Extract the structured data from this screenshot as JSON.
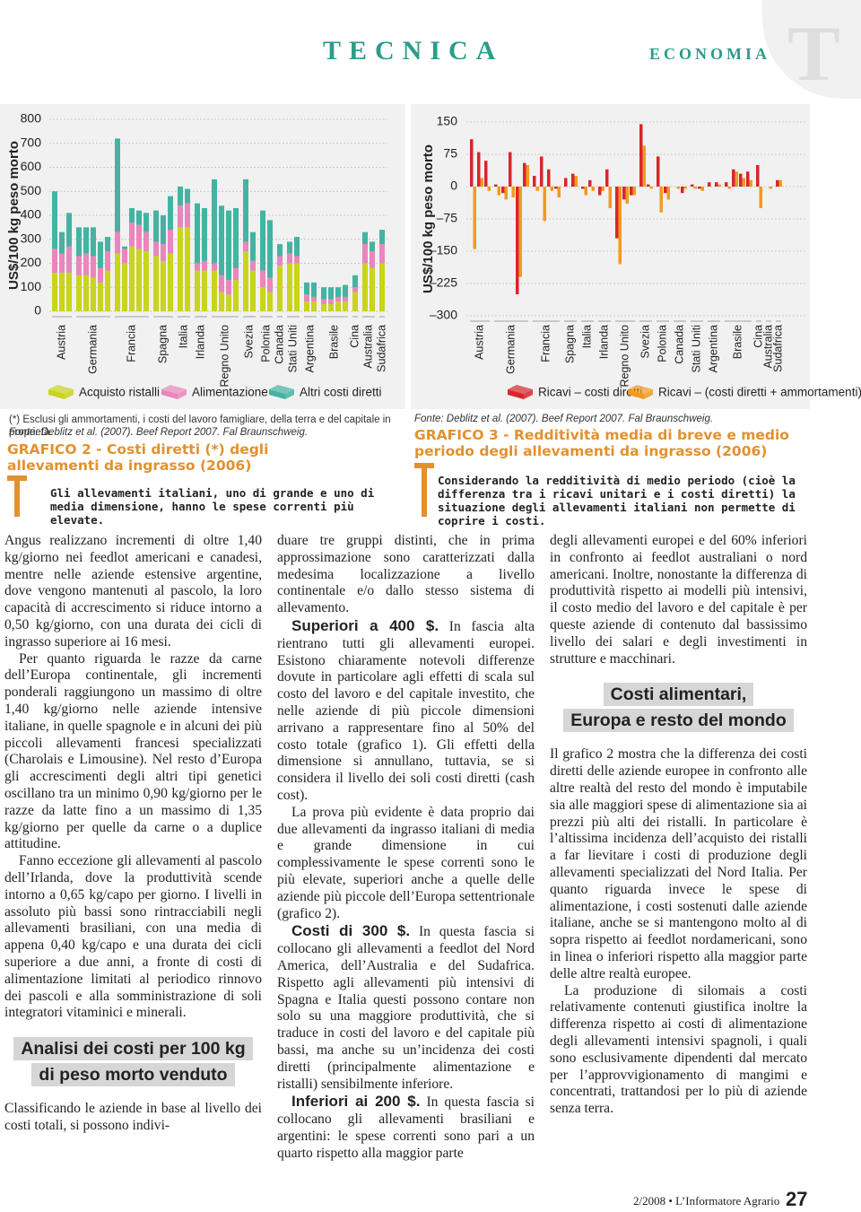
{
  "header": {
    "section": "TECNICA",
    "subsection": "ECONOMIA",
    "initial": "T"
  },
  "chart_data": [
    {
      "type": "stacked_bar",
      "y_label": "US$/100 kg peso morto",
      "categories": [
        "Austria",
        null,
        null,
        "Germania",
        null,
        null,
        null,
        null,
        "Francia",
        null,
        null,
        null,
        null,
        "Spagna",
        null,
        null,
        "Italia",
        null,
        "Irlanda",
        null,
        "Regno Unito",
        null,
        null,
        null,
        "Svezia",
        null,
        "Polonia",
        null,
        "Canada",
        "Stati Uniti",
        null,
        "Argentina",
        null,
        "Brasile",
        null,
        null,
        null,
        "Cina",
        "Australia",
        null,
        "Sudafrica"
      ],
      "series": [
        {
          "name": "Acquisto ristalli",
          "color": "#c9d41c",
          "values": [
            160,
            160,
            160,
            150,
            150,
            140,
            120,
            170,
            240,
            200,
            270,
            260,
            250,
            230,
            210,
            240,
            350,
            350,
            170,
            170,
            170,
            80,
            70,
            130,
            250,
            170,
            100,
            80,
            190,
            200,
            200,
            40,
            40,
            30,
            30,
            40,
            40,
            80,
            200,
            180,
            200
          ]
        },
        {
          "name": "Alimentazione",
          "color": "#e986bd",
          "values": [
            100,
            80,
            110,
            80,
            90,
            90,
            60,
            80,
            90,
            60,
            100,
            100,
            80,
            60,
            70,
            100,
            90,
            100,
            30,
            40,
            30,
            70,
            60,
            50,
            40,
            40,
            70,
            60,
            40,
            40,
            30,
            30,
            20,
            20,
            20,
            20,
            20,
            20,
            80,
            70,
            80
          ]
        },
        {
          "name": "Altri costi diretti",
          "color": "#45b3a3",
          "values": [
            240,
            90,
            140,
            120,
            110,
            120,
            110,
            60,
            390,
            10,
            60,
            60,
            80,
            130,
            120,
            140,
            80,
            60,
            250,
            220,
            350,
            290,
            290,
            250,
            260,
            120,
            250,
            240,
            50,
            50,
            80,
            50,
            60,
            50,
            50,
            40,
            50,
            50,
            50,
            40,
            60
          ]
        }
      ],
      "ylim": [
        0,
        800
      ],
      "yticks": [
        0,
        100,
        200,
        300,
        400,
        500,
        600,
        700,
        800
      ],
      "grid": true
    },
    {
      "type": "grouped_bar",
      "y_label": "US$/100 kg peso morto",
      "categories": [
        "Austria",
        null,
        null,
        "Germania",
        null,
        null,
        null,
        null,
        "Francia",
        null,
        null,
        null,
        "Spagna",
        null,
        "Italia",
        null,
        "Irlanda",
        null,
        "Regno Unito",
        null,
        null,
        "Svezia",
        null,
        "Polonia",
        null,
        "Canada",
        null,
        "Stati Uniti",
        null,
        "Argentina",
        null,
        "Brasile",
        null,
        null,
        null,
        "Cina",
        "Australia",
        "Sudafrica"
      ],
      "series": [
        {
          "name": "Ricavi – costi diretti",
          "color": "#d9262c",
          "values": [
            110,
            80,
            60,
            5,
            -15,
            80,
            -250,
            55,
            25,
            70,
            40,
            -5,
            20,
            30,
            -5,
            15,
            -20,
            40,
            -120,
            -30,
            -20,
            145,
            5,
            70,
            -15,
            0,
            -15,
            5,
            -5,
            10,
            10,
            10,
            40,
            30,
            35,
            50,
            0,
            15
          ]
        },
        {
          "name": "Ricavi – (costi diretti + ammortamenti)",
          "color": "#f39a1f",
          "values": [
            -145,
            20,
            -10,
            -20,
            -30,
            -25,
            -210,
            50,
            -10,
            -80,
            -10,
            -25,
            0,
            25,
            -20,
            -10,
            -10,
            -50,
            -180,
            -40,
            -20,
            95,
            -5,
            -60,
            -30,
            -5,
            -5,
            -5,
            -10,
            0,
            5,
            -5,
            35,
            20,
            15,
            -50,
            -5,
            15
          ]
        }
      ],
      "ylim": [
        -300,
        150
      ],
      "yticks": [
        {
          "value": -300,
          "label": "–300"
        },
        {
          "value": -225,
          "label": "–225"
        },
        {
          "value": -150,
          "label": "–150"
        },
        {
          "value": -75,
          "label": "–75"
        },
        0,
        75,
        150
      ],
      "grid": true
    }
  ],
  "captions": {
    "left": {
      "footnote": "(*) Esclusi gli ammortamenti, i costi del lavoro famigliare, della terra e del capitale in proprietà.",
      "source": "Fonte: Deblitz et al. (2007). Beef Report 2007. Fal Braunschweig.",
      "title": "GRAFICO 2 - Costi diretti (*) degli allevamenti da ingrasso (2006)",
      "text": "Gli allevamenti italiani, uno di grande e uno di media dimensione, hanno le spese correnti più elevate."
    },
    "right": {
      "source": "Fonte: Deblitz et al. (2007). Beef Report 2007. Fal Braunschweig.",
      "title": "GRAFICO 3 - Redditività media di breve e medio periodo degli allevamenti da ingrasso (2006)",
      "text": "Considerando la redditività di medio periodo (cioè la differenza tra i ricavi unitari e i costi diretti) la situazione degli allevamenti italiani non permette di coprire i costi."
    }
  },
  "article": {
    "columns": [
      {
        "blocks": [
          {
            "text": "Angus realizzano incrementi di oltre 1,40 kg/giorno nei feedlot americani e canadesi, mentre nelle aziende estensive argentine, dove vengono mantenuti al pascolo, la loro capacità di accrescimento si riduce intorno a 0,50 kg/giorno, con una durata dei cicli di ingrasso superiore ai 16 mesi."
          },
          {
            "text": "Per quanto riguarda le razze da carne dell’Europa continentale, gli incrementi ponderali raggiungono un massimo di oltre 1,40 kg/giorno nelle aziende intensive italiane, in quelle spagnole e in alcuni dei più piccoli allevamenti francesi specializzati (Charolais e Limousine). Nel resto d’Europa gli accrescimenti degli altri tipi genetici oscillano tra un minimo 0,90 kg/giorno per le razze da latte fino a un massimo di 1,35 kg/giorno per quelle da carne o a duplice attitudine."
          },
          {
            "text": "Fanno eccezione gli allevamenti al pascolo dell’Irlanda, dove la produttività scende intorno a 0,65 kg/capo per giorno. I livelli in assoluto più bassi sono rintracciabili negli allevamenti brasiliani, con una media di appena 0,40 kg/capo e una durata dei cicli superiore a due anni, a fronte di costi di alimentazione limitati al periodico rinnovo dei pascoli e alla somministrazione di soli integratori vitaminici e minerali."
          },
          {
            "heading": [
              "Analisi dei costi per 100 kg",
              "di peso morto venduto"
            ]
          },
          {
            "text": "Classificando le aziende in base al livello dei costi totali, si possono indivi-"
          }
        ]
      },
      {
        "blocks": [
          {
            "text": "duare tre gruppi distinti, che in prima approssimazione sono caratterizzati dalla medesima localizzazione a livello continentale e/o dallo stesso sistema di allevamento."
          },
          {
            "lead": "Superiori a 400 $.",
            "text": "In fascia alta rientrano tutti gli allevamenti europei. Esistono chiaramente notevoli differenze dovute in particolare agli effetti di scala sul costo del lavoro e del capitale investito, che nelle aziende di più piccole dimensioni arrivano a rappresentare fino al 50% del costo totale (grafico 1). Gli effetti della dimensione si annullano, tuttavia, se si considera il livello dei soli costi diretti (cash cost)."
          },
          {
            "text": "La prova più evidente è data proprio dai due allevamenti da ingrasso italiani di media e grande dimensione in cui complessivamente le spese correnti sono le più elevate, superiori anche a quelle delle aziende più piccole dell’Europa settentrionale (grafico 2)."
          },
          {
            "lead": "Costi di 300 $.",
            "text": "In questa fascia si collocano gli allevamenti a feedlot del Nord America, dell’Australia e del Sudafrica. Rispetto agli allevamenti più intensivi di Spagna e Italia questi possono contare non solo su una maggiore produttività, che si traduce in costi del lavoro e del capitale più bassi, ma anche su un’incidenza dei costi diretti (principalmente alimentazione e ristalli) sensibilmente inferiore."
          },
          {
            "lead": "Inferiori ai 200 $.",
            "text": "In questa fascia si collocano gli allevamenti brasiliani e argentini: le spese correnti sono pari a un quarto rispetto alla maggior parte"
          }
        ]
      },
      {
        "blocks": [
          {
            "text": "degli allevamenti europei e del 60% inferiori in confronto ai feedlot australiani o nord americani. Inoltre, nonostante la differenza di produttività rispetto ai modelli più intensivi, il costo medio del lavoro e del capitale è per queste aziende di contenuto dal bassissimo livello dei salari e degli investimenti in strutture e macchinari."
          },
          {
            "heading": [
              "Costi alimentari,",
              "Europa e resto del mondo"
            ]
          },
          {
            "text": "Il grafico 2 mostra che la differenza dei costi diretti delle aziende europee in confronto alle altre realtà del resto del mondo è imputabile sia alle maggiori spese di alimentazione sia ai prezzi più alti dei ristalli. In particolare è l’altissima incidenza dell’acquisto dei ristalli a far lievitare i costi di produzione degli allevamenti specializzati del Nord Italia. Per quanto riguarda invece le spese di alimentazione, i costi sostenuti dalle aziende italiane, anche se si mantengono molto al di sopra rispetto ai feedlot nordamericani, sono in linea o inferiori rispetto alla maggior parte delle altre realtà europee."
          },
          {
            "text": "La produzione di silomais a costi relativamente contenuti giustifica inoltre la differenza rispetto ai costi di alimentazione degli allevamenti intensivi spagnoli, i quali sono esclusivamente dipendenti dal mercato per l’approvvigionamento di mangimi e concentrati, trattandosi per lo più di aziende senza terra."
          }
        ]
      }
    ]
  },
  "footer": {
    "issue": "2/2008 • L’Informatore Agrario",
    "page": "27"
  }
}
